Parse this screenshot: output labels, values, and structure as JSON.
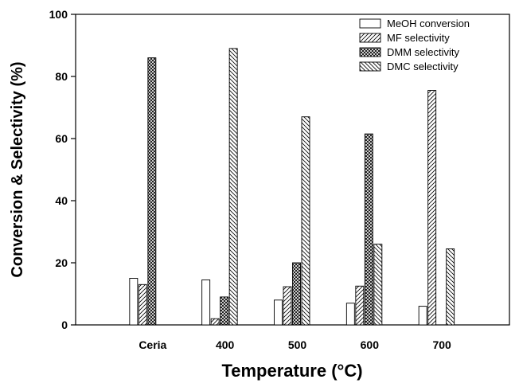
{
  "chart_data": {
    "type": "bar",
    "x_label": "Temperature (°C)",
    "y_label": "Conversion & Selectivity (%)",
    "categories": [
      "Ceria",
      "400",
      "500",
      "600",
      "700"
    ],
    "series": [
      {
        "name": "MeOH conversion",
        "color": "#000000",
        "pattern": "none",
        "values": [
          15,
          14.5,
          8,
          7,
          6
        ]
      },
      {
        "name": "MF selectivity",
        "color": "#000000",
        "pattern": "forward",
        "values": [
          13,
          2,
          12.3,
          12.5,
          75.5
        ]
      },
      {
        "name": "DMM selectivity",
        "color": "#000000",
        "pattern": "cross",
        "values": [
          86,
          9,
          20,
          61.5,
          null
        ]
      },
      {
        "name": "DMC selectivity",
        "color": "#000000",
        "pattern": "back",
        "values": [
          null,
          89,
          67,
          26,
          24.5
        ]
      }
    ],
    "ylim": [
      0,
      100
    ],
    "yticks": [
      0,
      20,
      40,
      60,
      80,
      100
    ],
    "legend": "upper right"
  }
}
